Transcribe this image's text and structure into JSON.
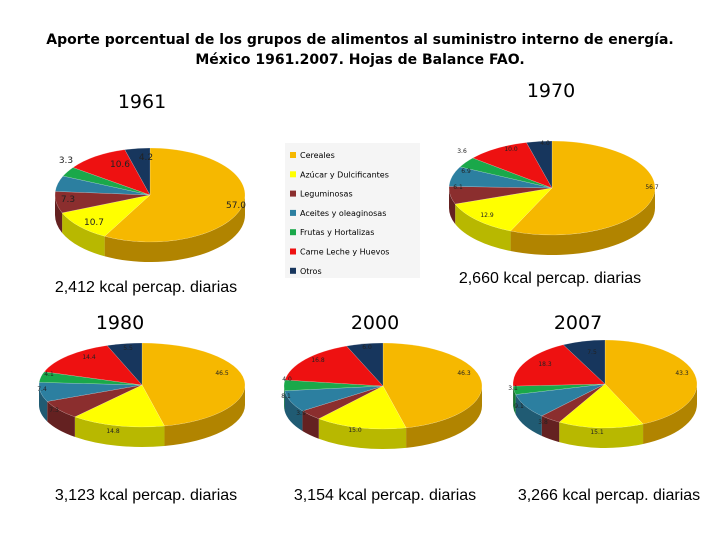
{
  "title_line1": "Aporte porcentual de los grupos de alimentos al suministro interno de energía.",
  "title_line2": "México 1961.2007. Hojas de Balance FAO.",
  "legend": [
    {
      "name": "Cereales",
      "color": "#F6B800"
    },
    {
      "name": "Azúcar y Dulcificantes",
      "color": "#FFFF00"
    },
    {
      "name": "Leguminosas",
      "color": "#8B2E2E"
    },
    {
      "name": "Aceites y oleaginosas",
      "color": "#2C7FA0"
    },
    {
      "name": "Frutas y Hortalizas",
      "color": "#1AA84A"
    },
    {
      "name": "Carne Leche y Huevos",
      "color": "#EE1111"
    },
    {
      "name": "Otros",
      "color": "#17365D"
    }
  ],
  "chart_data": [
    {
      "type": "pie",
      "title": "1961",
      "subtitle": "2,412 kcal percap. diarias",
      "categories": [
        "Cereales",
        "Azúcar y Dulcificantes",
        "Leguminosas",
        "Aceites y oleaginosas",
        "Frutas y Hortalizas",
        "Carne Leche y Huevos",
        "Otros"
      ],
      "values": [
        57.0,
        10.7,
        7.3,
        5.3,
        3.3,
        10.6,
        4.2
      ],
      "labels": [
        "57.0",
        "10.7",
        "7.3",
        "",
        "3.3",
        "10.6",
        "4.2"
      ]
    },
    {
      "type": "pie",
      "title": "1970",
      "subtitle": "2,660 kcal percap. diarias",
      "categories": [
        "Cereales",
        "Azúcar y Dulcificantes",
        "Leguminosas",
        "Aceites y oleaginosas",
        "Frutas y Hortalizas",
        "Carne Leche y Huevos",
        "Otros"
      ],
      "values": [
        56.7,
        12.9,
        6.1,
        6.9,
        3.6,
        10.0,
        4.0
      ],
      "labels": [
        "56.7",
        "12.9",
        "6.1",
        "6.9",
        "3.6",
        "10.0",
        "4.0"
      ]
    },
    {
      "type": "pie",
      "title": "1980",
      "subtitle": "3,123 kcal percap. diarias",
      "categories": [
        "Cereales",
        "Azúcar y Dulcificantes",
        "Leguminosas",
        "Aceites y oleaginosas",
        "Frutas y Hortalizas",
        "Carne Leche y Huevos",
        "Otros"
      ],
      "values": [
        46.5,
        14.8,
        7.3,
        7.4,
        4.1,
        14.4,
        5.5
      ],
      "labels": [
        "46.5",
        "14.8",
        "7.3",
        "7.4",
        "4.1",
        "14.4",
        "5.5"
      ]
    },
    {
      "type": "pie",
      "title": "2000",
      "subtitle": "3,154 kcal percap. diarias",
      "categories": [
        "Cereales",
        "Azúcar y Dulcificantes",
        "Leguminosas",
        "Aceites y oleaginosas",
        "Frutas y Hortalizas",
        "Carne Leche y Huevos",
        "Otros"
      ],
      "values": [
        46.3,
        15.0,
        3.9,
        8.1,
        4.0,
        16.8,
        6.0
      ],
      "labels": [
        "46.3",
        "15.0",
        "3.9",
        "8.1",
        "4.0",
        "16.8",
        "6.0"
      ]
    },
    {
      "type": "pie",
      "title": "2007",
      "subtitle": "3,266 kcal percap. diarias",
      "categories": [
        "Cereales",
        "Azúcar y Dulcificantes",
        "Leguminosas",
        "Aceites y oleaginosas",
        "Frutas y Hortalizas",
        "Carne Leche y Huevos",
        "Otros"
      ],
      "values": [
        43.3,
        15.1,
        3.8,
        9.1,
        3.1,
        18.3,
        7.5
      ],
      "labels": [
        "43.3",
        "15.1",
        "3.8",
        "9.1",
        "3.1",
        "18.3",
        "7.5"
      ]
    }
  ]
}
